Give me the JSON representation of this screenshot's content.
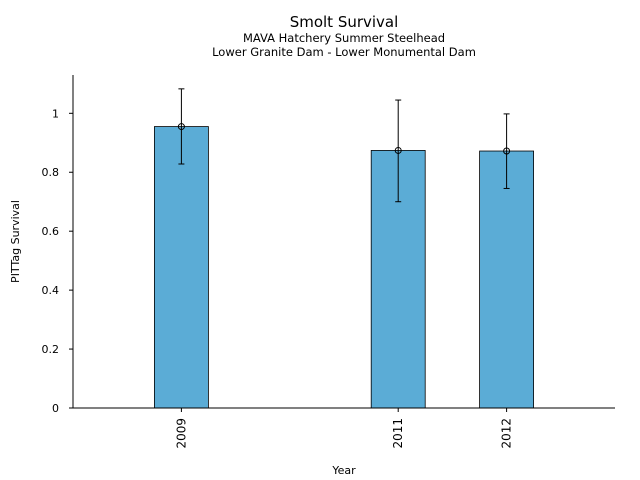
{
  "chart_data": {
    "type": "bar",
    "title": "Smolt Survival",
    "subtitle_lines": [
      "MAVA Hatchery Summer Steelhead",
      "Lower Granite Dam - Lower Monumental Dam"
    ],
    "xlabel": "Year",
    "ylabel": "PITTag Survival",
    "x_ticks": [
      2009,
      2011,
      2012
    ],
    "x_range": [
      2008,
      2013
    ],
    "ylim": [
      0,
      1.13
    ],
    "y_ticks": [
      0,
      0.2,
      0.4,
      0.6,
      0.8,
      1
    ],
    "y_tick_labels": [
      "0",
      "0.2",
      "0.4",
      "0.6",
      "0.8",
      "1"
    ],
    "bar_color": "#5bacd6",
    "grid": false,
    "legend": "none",
    "data": [
      {
        "year": 2009,
        "value": 0.955,
        "err_low": 0.828,
        "err_high": 1.083
      },
      {
        "year": 2011,
        "value": 0.874,
        "err_low": 0.7,
        "err_high": 1.045
      },
      {
        "year": 2012,
        "value": 0.872,
        "err_low": 0.745,
        "err_high": 0.998
      }
    ]
  }
}
